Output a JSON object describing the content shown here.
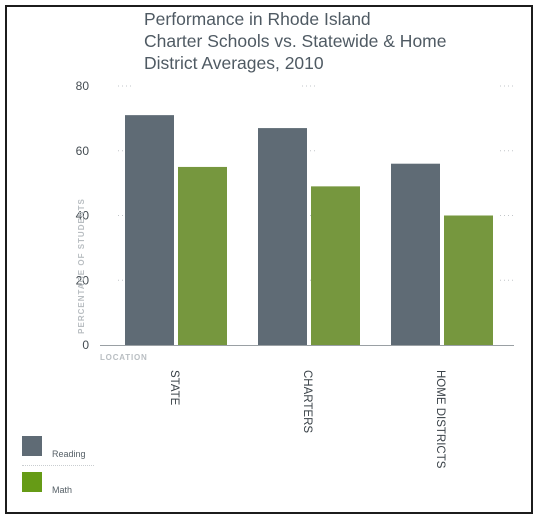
{
  "chart_data": {
    "type": "bar",
    "title": [
      "Performance in Rhode Island",
      "Charter Schools vs. Statewide & Home",
      "District Averages, 2010"
    ],
    "xlabel": "LOCATION",
    "ylabel": "PERCENTAGE OF STUDENTS",
    "categories": [
      "STATE",
      "CHARTERS",
      "HOME DISTRICTS"
    ],
    "series": [
      {
        "name": "Reading",
        "values": [
          71,
          67,
          56
        ],
        "color": "#5f6b75"
      },
      {
        "name": "Math",
        "values": [
          55,
          49,
          40
        ],
        "color": "#76973e"
      }
    ],
    "ylim": [
      0,
      80
    ],
    "yticks": [
      0,
      20,
      40,
      60,
      80
    ],
    "grid": true,
    "legend_position": "bottom-left"
  },
  "legend": {
    "items": [
      {
        "label": "Reading",
        "color": "#5f6b75"
      },
      {
        "label": "Math",
        "color": "#669b16"
      }
    ]
  }
}
